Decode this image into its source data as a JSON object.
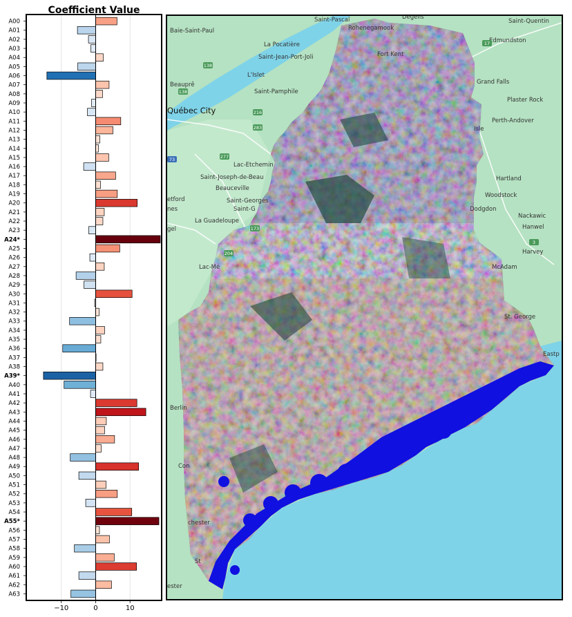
{
  "chart_data": {
    "type": "bar",
    "orientation": "horizontal",
    "title": "Coefficient Value",
    "xlim": [
      -20,
      19
    ],
    "xticks": [
      -10,
      0,
      10
    ],
    "xtick_labels": [
      "−10",
      "0",
      "10"
    ],
    "grid": "vertical",
    "categories": [
      "A00",
      "A01",
      "A02",
      "A03",
      "A04",
      "A05",
      "A06",
      "A07",
      "A08",
      "A09",
      "A10",
      "A11",
      "A12",
      "A13",
      "A14",
      "A15",
      "A16",
      "A17",
      "A18",
      "A19",
      "A20",
      "A21",
      "A22",
      "A23",
      "A24*",
      "A25",
      "A26",
      "A27",
      "A28",
      "A29",
      "A30",
      "A31",
      "A32",
      "A33",
      "A34",
      "A35",
      "A36",
      "A37",
      "A38",
      "A39*",
      "A40",
      "A41",
      "A42",
      "A43",
      "A44",
      "A45",
      "A46",
      "A47",
      "A48",
      "A49",
      "A50",
      "A51",
      "A52",
      "A53",
      "A54",
      "A55*",
      "A56",
      "A57",
      "A58",
      "A59",
      "A60",
      "A61",
      "A62",
      "A63"
    ],
    "values": [
      6.2,
      -5.3,
      -2.1,
      -1.4,
      2.2,
      -5.2,
      -14.2,
      3.9,
      2.0,
      -1.2,
      -2.4,
      7.3,
      5.0,
      1.2,
      0.8,
      3.8,
      -3.5,
      5.8,
      1.4,
      6.3,
      12.1,
      2.5,
      2.1,
      -2.0,
      18.8,
      7.0,
      -1.7,
      2.5,
      -5.7,
      -3.4,
      10.6,
      -0.3,
      1.0,
      -7.6,
      2.6,
      1.5,
      -9.6,
      0.0,
      2.1,
      -15.2,
      -9.2,
      -1.5,
      12.0,
      14.6,
      3.1,
      2.6,
      5.5,
      1.6,
      -7.4,
      12.5,
      -4.9,
      3.0,
      6.3,
      -2.9,
      10.5,
      18.4,
      1.1,
      4.0,
      -6.2,
      5.4,
      11.9,
      -4.9,
      4.6,
      -7.2
    ],
    "bold_categories": [
      "A24*",
      "A39*",
      "A55*"
    ],
    "colormap": "diverging-red-blue"
  },
  "map": {
    "places": [
      {
        "name": "Saint-Pascal"
      },
      {
        "name": "Baie-Saint-Paul"
      },
      {
        "name": "Rohenegamook"
      },
      {
        "name": "Degelis"
      },
      {
        "name": "Saint-Quentin"
      },
      {
        "name": "La Pocatière"
      },
      {
        "name": "Edmundston"
      },
      {
        "name": "Saint-Jean-Port-Joli"
      },
      {
        "name": "Fort Kent"
      },
      {
        "name": "L'Islet"
      },
      {
        "name": "Beauprê"
      },
      {
        "name": "Saint-Pamphile"
      },
      {
        "name": "Grand Falls"
      },
      {
        "name": "Plaster Rock"
      },
      {
        "name": "Québec City"
      },
      {
        "name": "Perth-Andover"
      },
      {
        "name": "Isle"
      },
      {
        "name": "Lac-Etchemin"
      },
      {
        "name": "Saint-Joseph-de-Beau"
      },
      {
        "name": "Beauceville"
      },
      {
        "name": "Saint-Georges"
      },
      {
        "name": "Saint-G"
      },
      {
        "name": "Hartland"
      },
      {
        "name": "Woodstock"
      },
      {
        "name": "etford"
      },
      {
        "name": "nes"
      },
      {
        "name": "Nackawic"
      },
      {
        "name": "Hanwel"
      },
      {
        "name": "Dodgdon"
      },
      {
        "name": "La Guadeloupe"
      },
      {
        "name": "gel"
      },
      {
        "name": "Harvey"
      },
      {
        "name": "McAdam"
      },
      {
        "name": "Lac-Mé"
      },
      {
        "name": "St. George"
      },
      {
        "name": "Eastp"
      },
      {
        "name": "Berlin"
      },
      {
        "name": "Con"
      },
      {
        "name": "chester"
      },
      {
        "name": "ester"
      },
      {
        "name": "St"
      }
    ],
    "road_labels": [
      "138",
      "138",
      "216",
      "283",
      "277",
      "73",
      "173",
      "204",
      "17",
      "3"
    ],
    "colors": {
      "water": "#7fd3e8",
      "land": "#b5e2c2",
      "land_light": "#c9ecd2",
      "region_dark": "#3a5a52",
      "coast_blue": "#1010e0"
    }
  }
}
